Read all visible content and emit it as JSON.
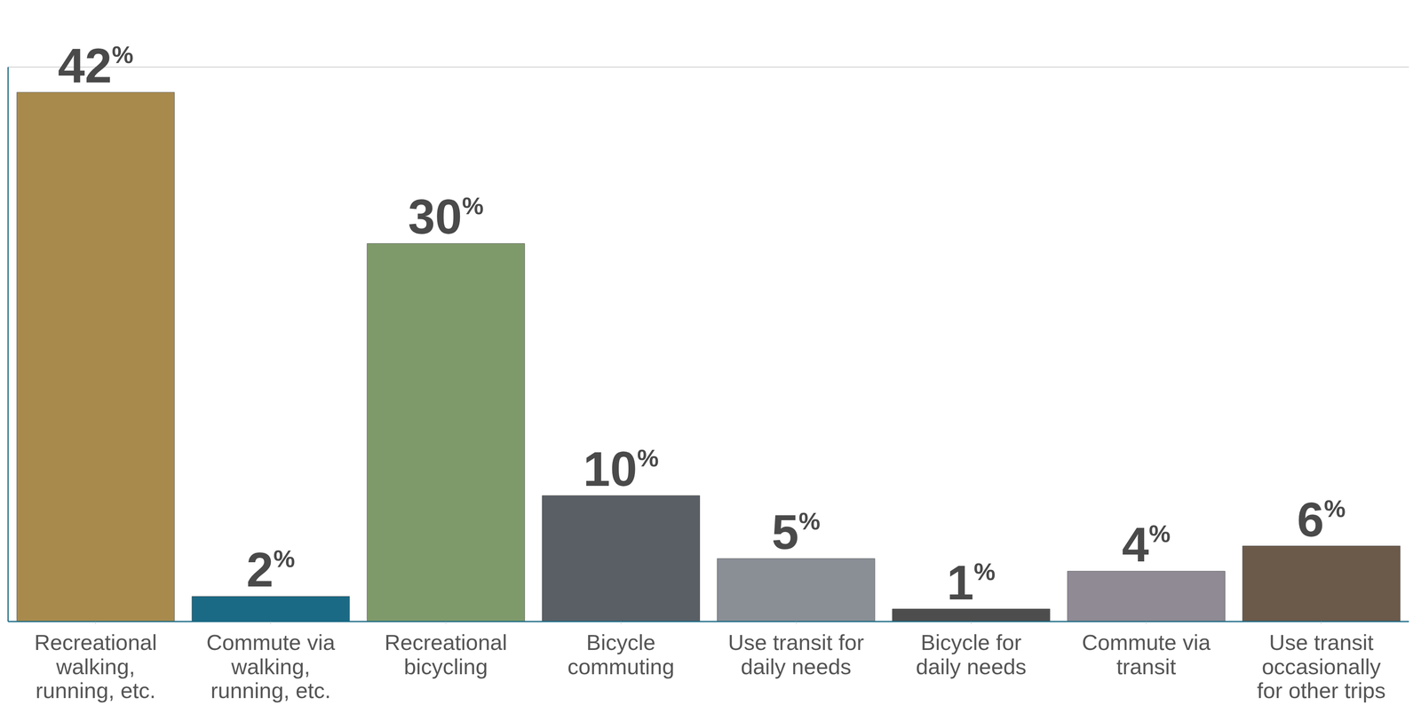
{
  "chart_data": {
    "type": "bar",
    "categories": [
      "Recreational walking, running, etc.",
      "Commute via walking, running, etc.",
      "Recreational bicycling",
      "Bicycle commuting",
      "Use transit for daily needs",
      "Bicycle for daily needs",
      "Commute via transit",
      "Use transit occasionally for other trips"
    ],
    "values": [
      42,
      2,
      30,
      10,
      5,
      1,
      4,
      6
    ],
    "value_labels": [
      "42%",
      "2%",
      "30%",
      "10%",
      "5%",
      "1%",
      "4%",
      "6%"
    ],
    "data_labels": true,
    "colors": [
      "#a88a4c",
      "#1b6a85",
      "#7f9a6a",
      "#5a5f66",
      "#8a8f96",
      "#4d4d4d",
      "#8f8a94",
      "#6b5a4a"
    ],
    "ylim": [
      0,
      44
    ],
    "yticks": [
      0,
      12.5,
      25,
      37.5
    ],
    "grid": true,
    "tick_labels": false
  }
}
